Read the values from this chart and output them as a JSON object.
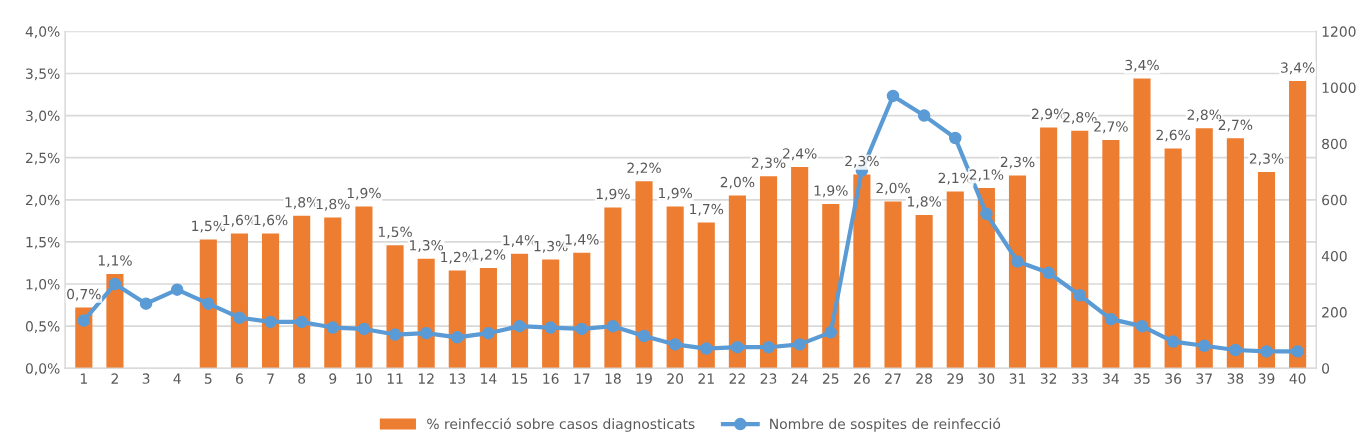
{
  "chart_data": {
    "type": "bar",
    "categories": [
      "1",
      "2",
      "3",
      "4",
      "5",
      "6",
      "7",
      "8",
      "9",
      "10",
      "11",
      "12",
      "13",
      "14",
      "15",
      "16",
      "17",
      "18",
      "19",
      "20",
      "21",
      "22",
      "23",
      "24",
      "25",
      "26",
      "27",
      "28",
      "29",
      "30",
      "31",
      "32",
      "33",
      "34",
      "35",
      "36",
      "37",
      "38",
      "39",
      "40"
    ],
    "series": [
      {
        "name": "% reinfecció sobre casos diagnosticats",
        "color": "#ed7d31",
        "values": [
          0.72,
          1.12,
          null,
          null,
          1.53,
          1.6,
          1.6,
          1.81,
          1.79,
          1.92,
          1.46,
          1.3,
          1.16,
          1.19,
          1.36,
          1.29,
          1.37,
          1.91,
          2.22,
          1.92,
          1.73,
          2.05,
          2.28,
          2.39,
          1.95,
          2.3,
          1.98,
          1.82,
          2.1,
          2.14,
          2.29,
          2.86,
          2.82,
          2.71,
          3.44,
          2.61,
          2.85,
          2.73,
          2.33,
          3.41
        ],
        "value_labels": [
          "0,7%",
          "1,1%",
          null,
          null,
          "1,5%",
          "1,6%",
          "1,6%",
          "1,8%",
          "1,8%",
          "1,9%",
          "1,5%",
          "1,3%",
          "1,2%",
          "1,2%",
          "1,4%",
          "1,3%",
          "1,4%",
          "1,9%",
          "2,2%",
          "1,9%",
          "1,7%",
          "2,0%",
          "2,3%",
          "2,4%",
          "1,9%",
          "2,3%",
          "2,0%",
          "1,8%",
          "2,1%",
          "2,1%",
          "2,3%",
          "2,9%",
          "2,8%",
          "2,7%",
          "3,4%",
          "2,6%",
          "2,8%",
          "2,7%",
          "2,3%",
          "3,4%"
        ]
      },
      {
        "name": "Nombre de sospites de reinfecció",
        "type": "line",
        "axis": "y2",
        "color": "#5b9bd5",
        "marker": "circle",
        "line_style": "solid",
        "values": [
          170,
          300,
          230,
          280,
          230,
          180,
          165,
          165,
          145,
          140,
          120,
          125,
          110,
          125,
          150,
          145,
          140,
          150,
          115,
          85,
          70,
          75,
          75,
          85,
          128,
          705,
          970,
          900,
          820,
          550,
          380,
          340,
          260,
          175,
          150,
          95,
          80,
          65,
          60,
          60
        ]
      }
    ],
    "ylim": [
      0,
      4.0
    ],
    "yticks": [
      {
        "value": 0,
        "label": "0,0%"
      },
      {
        "value": 0.5,
        "label": "0,5%"
      },
      {
        "value": 1.0,
        "label": "1,0%"
      },
      {
        "value": 1.5,
        "label": "1,5%"
      },
      {
        "value": 2.0,
        "label": "2,0%"
      },
      {
        "value": 2.5,
        "label": "2,5%"
      },
      {
        "value": 3.0,
        "label": "3,0%"
      },
      {
        "value": 3.5,
        "label": "3,5%"
      },
      {
        "value": 4.0,
        "label": "4,0%"
      }
    ],
    "y2lim": [
      0,
      1200
    ],
    "y2ticks": [
      0,
      200,
      400,
      600,
      800,
      1000,
      1200
    ],
    "grid": "y",
    "legend": "bottom"
  }
}
